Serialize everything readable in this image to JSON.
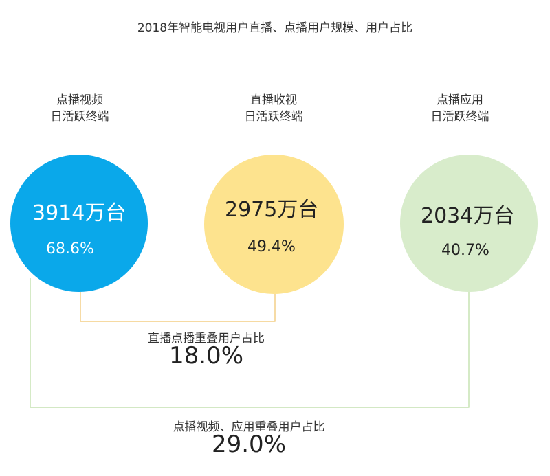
{
  "title": "2018年智能电视用户直播、点播用户规模、用户占比",
  "colors": {
    "vod_video": "#0aa8ea",
    "live": "#fde38e",
    "vod_app": "#d8eccb",
    "connector_live_vod": "#f0c36a",
    "connector_vod_app": "#b9dba0"
  },
  "groups": [
    {
      "id": "vod-video",
      "label_line1": "点播视频",
      "label_line2": "日活跃终端",
      "value": "3914万台",
      "percent": "68.6%"
    },
    {
      "id": "live",
      "label_line1": "直播收视",
      "label_line2": "日活跃终端",
      "value": "2975万台",
      "percent": "49.4%"
    },
    {
      "id": "vod-app",
      "label_line1": "点播应用",
      "label_line2": "日活跃终端",
      "value": "2034万台",
      "percent": "40.7%"
    }
  ],
  "overlaps": [
    {
      "id": "live-vod",
      "label": "直播点播重叠用户占比",
      "value": "18.0%"
    },
    {
      "id": "vod-app",
      "label": "点播视频、应用重叠用户占比",
      "value": "29.0%"
    }
  ]
}
